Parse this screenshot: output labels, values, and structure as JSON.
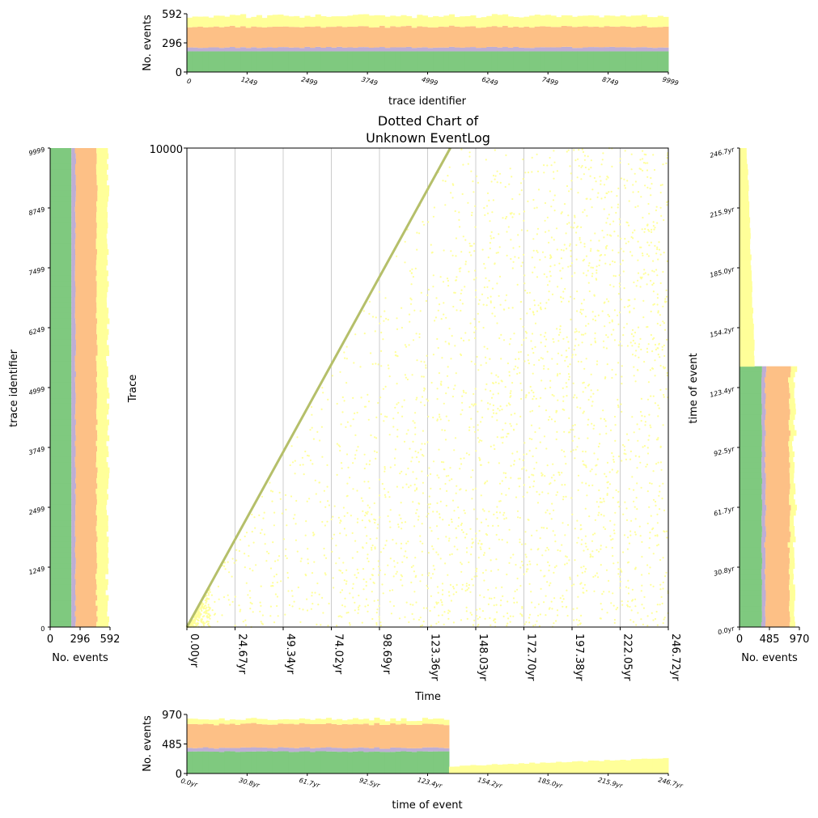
{
  "colors": {
    "green": "#7fc97f",
    "purple": "#beaed4",
    "orange": "#fdc086",
    "yellow": "#ffff99",
    "diagonal": "#b5bf6a",
    "grid": "#cccccc"
  },
  "chart_data": [
    {
      "id": "main",
      "type": "scatter",
      "title_lines": [
        "Dotted Chart of",
        "Unknown EventLog"
      ],
      "xlabel": "Time",
      "ylabel": "Trace",
      "x_unit": "yr",
      "xlim": [
        0,
        246.72
      ],
      "ylim": [
        0,
        10000
      ],
      "xtick_labels": [
        "0.00yr",
        "24.67yr",
        "49.34yr",
        "74.02yr",
        "98.69yr",
        "123.36yr",
        "148.03yr",
        "172.70yr",
        "197.38yr",
        "222.05yr",
        "246.72yr"
      ],
      "ytick_labels": [
        "10000"
      ],
      "grid": "vertical",
      "series": [
        {
          "type": "line",
          "x": [
            0,
            135
          ],
          "y": [
            0,
            10000
          ],
          "color_key": "diagonal"
        },
        {
          "type": "scatter",
          "region": "upper-right of diagonal",
          "x_range": [
            0,
            246.72
          ],
          "y_range": [
            0,
            10000
          ],
          "color_key": "yellow"
        }
      ]
    },
    {
      "id": "top",
      "type": "bar",
      "stacked": true,
      "xlabel": "trace identifier",
      "ylabel": "No. events",
      "xlim": [
        0,
        9999
      ],
      "ylim": [
        0,
        592
      ],
      "xtick_labels": [
        "0",
        "1249",
        "2499",
        "3749",
        "4999",
        "6249",
        "7499",
        "8749",
        "9999"
      ],
      "ytick_labels": [
        "0",
        "296",
        "592"
      ],
      "series": [
        {
          "color_key": "green",
          "values": [
            210
          ]
        },
        {
          "color_key": "purple",
          "values": [
            40
          ]
        },
        {
          "color_key": "orange",
          "values": [
            210
          ]
        },
        {
          "color_key": "yellow",
          "values": [
            110
          ]
        }
      ]
    },
    {
      "id": "left",
      "type": "bar",
      "stacked": true,
      "orientation": "horizontal",
      "xlabel": "No. events",
      "ylabel": "trace identifier",
      "xlim": [
        0,
        592
      ],
      "ylim": [
        0,
        9999
      ],
      "xtick_labels": [
        "0",
        "296",
        "592"
      ],
      "ytick_labels": [
        "0",
        "1249",
        "2499",
        "3749",
        "4999",
        "6249",
        "7499",
        "8749",
        "9999"
      ],
      "series": [
        {
          "color_key": "green",
          "values": [
            210
          ]
        },
        {
          "color_key": "purple",
          "values": [
            40
          ]
        },
        {
          "color_key": "orange",
          "values": [
            210
          ]
        },
        {
          "color_key": "yellow",
          "values": [
            110
          ]
        }
      ]
    },
    {
      "id": "bottom",
      "type": "bar",
      "stacked": true,
      "xlabel": "time of event",
      "ylabel": "No. events",
      "xlim": [
        0,
        246.7
      ],
      "ylim": [
        0,
        970
      ],
      "x_break": 135,
      "xtick_labels": [
        "0.0yr",
        "30.8yr",
        "61.7yr",
        "92.5yr",
        "123.4yr",
        "154.2yr",
        "185.0yr",
        "215.9yr",
        "246.7yr"
      ],
      "ytick_labels": [
        "0",
        "485",
        "970"
      ],
      "before_break": [
        {
          "color_key": "green",
          "value": 360
        },
        {
          "color_key": "purple",
          "value": 60
        },
        {
          "color_key": "orange",
          "value": 390
        },
        {
          "color_key": "yellow",
          "value": 80
        }
      ],
      "after_break": [
        {
          "color_key": "yellow",
          "values": [
            120,
            250
          ]
        }
      ]
    },
    {
      "id": "right",
      "type": "bar",
      "stacked": true,
      "orientation": "horizontal",
      "xlabel": "No. events",
      "ylabel": "time of event",
      "xlim": [
        0,
        970
      ],
      "ylim": [
        0,
        246.7
      ],
      "y_break": 135,
      "xtick_labels": [
        "0",
        "485",
        "970"
      ],
      "ytick_labels": [
        "0.0yr",
        "30.8yr",
        "61.7yr",
        "92.5yr",
        "123.4yr",
        "154.2yr",
        "185.0yr",
        "215.9yr",
        "246.7yr"
      ],
      "before_break": [
        {
          "color_key": "green",
          "value": 360
        },
        {
          "color_key": "purple",
          "value": 60
        },
        {
          "color_key": "orange",
          "value": 390
        },
        {
          "color_key": "yellow",
          "value": 80
        }
      ],
      "after_break": [
        {
          "color_key": "yellow",
          "values": [
            250,
            120
          ]
        }
      ]
    }
  ]
}
